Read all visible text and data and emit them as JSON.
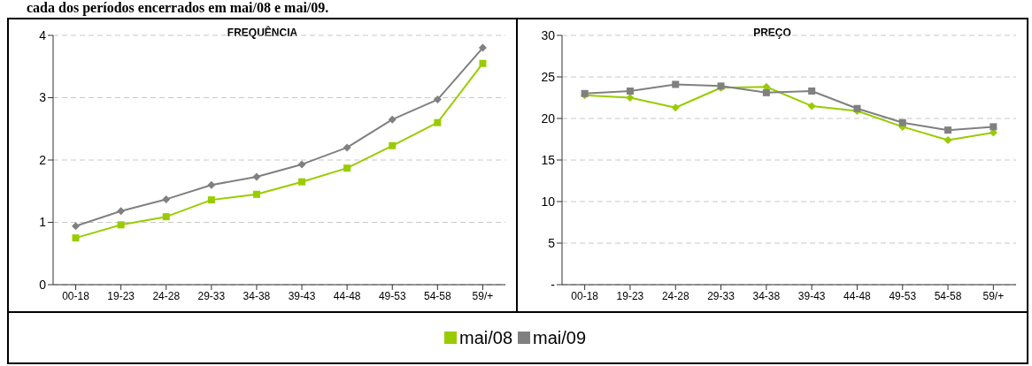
{
  "chart_data": [
    {
      "type": "line",
      "title": "FREQUÊNCIA",
      "annotations": [
        "cada dos períodos encerrados em mai/08 e mai/09."
      ],
      "categories": [
        "00-18",
        "19-23",
        "24-28",
        "29-33",
        "34-38",
        "39-43",
        "44-48",
        "49-53",
        "54-58",
        "59/+"
      ],
      "series": [
        {
          "name": "mai/08",
          "color": "#99cc00",
          "marker": "square",
          "values": [
            0.75,
            0.96,
            1.09,
            1.36,
            1.45,
            1.65,
            1.87,
            2.23,
            2.6,
            3.55
          ]
        },
        {
          "name": "mai/09",
          "color": "#808080",
          "marker": "diamond",
          "values": [
            0.94,
            1.18,
            1.37,
            1.6,
            1.73,
            1.93,
            2.2,
            2.65,
            2.97,
            3.8
          ]
        }
      ],
      "ylim": [
        0,
        4
      ],
      "yticks": [
        0,
        1,
        2,
        3,
        4
      ],
      "grid": "y",
      "legend": "bottom"
    },
    {
      "type": "line",
      "title": "PREÇO",
      "categories": [
        "00-18",
        "19-23",
        "24-28",
        "29-33",
        "34-38",
        "39-43",
        "44-48",
        "49-53",
        "54-58",
        "59/+"
      ],
      "series": [
        {
          "color": "#99cc00",
          "marker": "diamond",
          "values": [
            22.8,
            22.5,
            21.3,
            23.7,
            23.8,
            21.5,
            20.9,
            19,
            17.4,
            18.3
          ]
        },
        {
          "color": "#808080",
          "marker": "square",
          "values": [
            23,
            23.3,
            24.1,
            23.9,
            23.1,
            23.3,
            21.2,
            19.5,
            18.6,
            19
          ]
        }
      ],
      "ylim": [
        0,
        30
      ],
      "yticks": [
        {
          "value": 0,
          "label": "-"
        },
        5,
        10,
        15,
        20,
        25,
        30
      ],
      "grid": "y"
    }
  ]
}
